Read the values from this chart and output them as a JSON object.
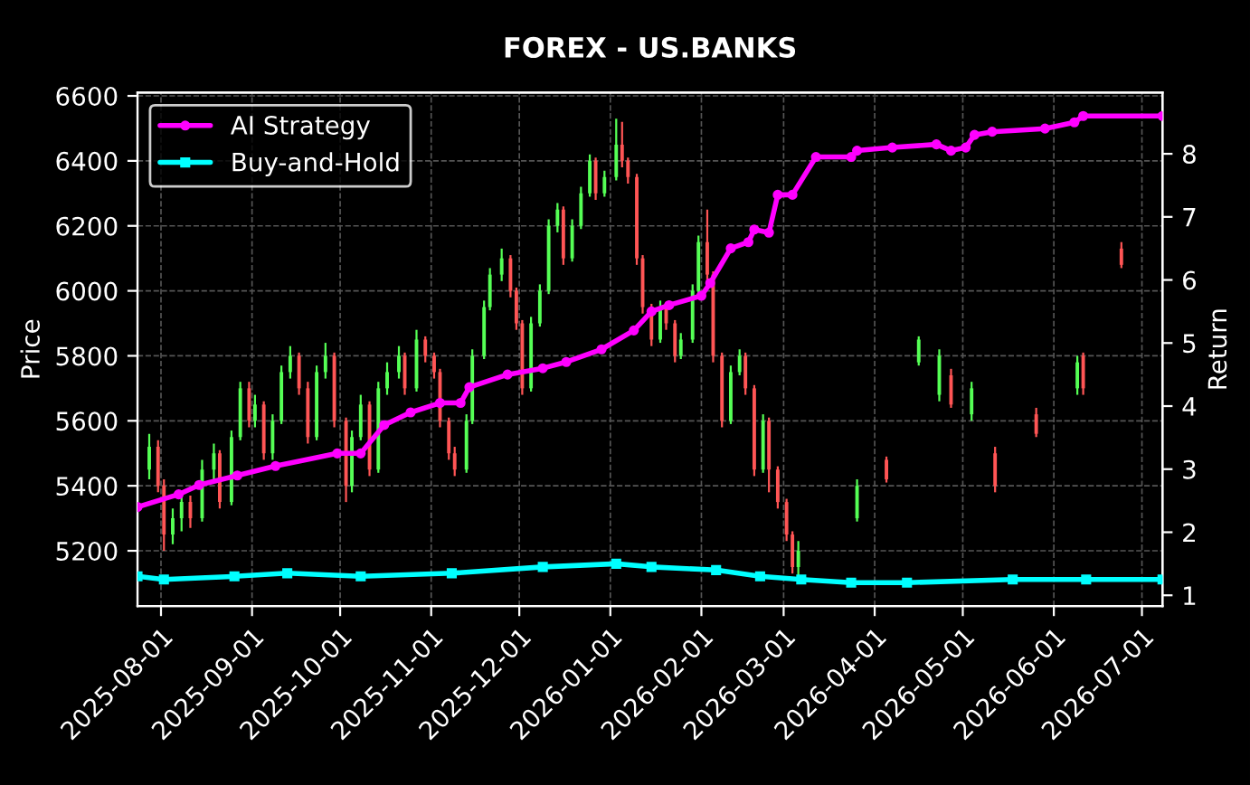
{
  "chart_data": {
    "type": "candlestick",
    "title": "FOREX - US.BANKS",
    "ylabel": "Price",
    "y2label": "Return",
    "x": [
      "2025-07-28",
      "2025-07-31",
      "2025-08-02",
      "2025-08-05",
      "2025-08-08",
      "2025-08-11",
      "2025-08-15",
      "2025-08-19",
      "2025-08-21",
      "2025-08-25",
      "2025-08-28",
      "2025-08-31",
      "2025-09-02",
      "2025-09-05",
      "2025-09-08",
      "2025-09-11",
      "2025-09-14",
      "2025-09-17",
      "2025-09-20",
      "2025-09-23",
      "2025-09-26",
      "2025-09-29",
      "2025-10-03",
      "2025-10-05",
      "2025-10-08",
      "2025-10-11",
      "2025-10-14",
      "2025-10-17",
      "2025-10-21",
      "2025-10-23",
      "2025-10-27",
      "2025-10-30",
      "2025-11-02",
      "2025-11-04",
      "2025-11-07",
      "2025-11-09",
      "2025-11-13",
      "2025-11-15",
      "2025-11-19",
      "2025-11-21",
      "2025-11-25",
      "2025-11-28",
      "2025-11-30",
      "2025-12-02",
      "2025-12-05",
      "2025-12-08",
      "2025-12-11",
      "2025-12-14",
      "2025-12-16",
      "2025-12-19",
      "2025-12-22",
      "2025-12-25",
      "2025-12-27",
      "2025-12-30",
      "2026-01-03",
      "2026-01-05",
      "2026-01-07",
      "2026-01-10",
      "2026-01-12",
      "2026-01-15",
      "2026-01-18",
      "2026-01-20",
      "2026-01-23",
      "2026-01-25",
      "2026-01-29",
      "2026-01-31",
      "2026-02-03",
      "2026-02-05",
      "2026-02-08",
      "2026-02-11",
      "2026-02-14",
      "2026-02-16",
      "2026-02-19",
      "2026-02-22",
      "2026-02-24",
      "2026-02-27",
      "2026-03-02",
      "2026-03-04",
      "2026-03-06",
      "2026-03-26",
      "2026-04-05",
      "2026-04-16",
      "2026-04-23",
      "2026-04-27",
      "2026-05-04",
      "2026-05-12",
      "2026-05-26",
      "2026-06-09",
      "2026-06-11",
      "2026-06-24"
    ],
    "ohlc": [
      [
        5450,
        5560,
        5420,
        5520
      ],
      [
        5520,
        5540,
        5380,
        5400
      ],
      [
        5400,
        5420,
        5200,
        5250
      ],
      [
        5250,
        5330,
        5220,
        5300
      ],
      [
        5300,
        5380,
        5260,
        5350
      ],
      [
        5350,
        5370,
        5270,
        5300
      ],
      [
        5300,
        5480,
        5290,
        5450
      ],
      [
        5450,
        5530,
        5420,
        5500
      ],
      [
        5500,
        5510,
        5330,
        5350
      ],
      [
        5350,
        5570,
        5340,
        5550
      ],
      [
        5550,
        5720,
        5540,
        5700
      ],
      [
        5700,
        5720,
        5580,
        5600
      ],
      [
        5600,
        5680,
        5580,
        5650
      ],
      [
        5650,
        5660,
        5480,
        5500
      ],
      [
        5500,
        5620,
        5480,
        5600
      ],
      [
        5600,
        5770,
        5590,
        5750
      ],
      [
        5750,
        5830,
        5730,
        5800
      ],
      [
        5800,
        5810,
        5680,
        5700
      ],
      [
        5700,
        5720,
        5530,
        5550
      ],
      [
        5550,
        5770,
        5540,
        5750
      ],
      [
        5750,
        5840,
        5730,
        5800
      ],
      [
        5800,
        5810,
        5580,
        5600
      ],
      [
        5600,
        5610,
        5350,
        5400
      ],
      [
        5400,
        5570,
        5380,
        5550
      ],
      [
        5550,
        5680,
        5540,
        5650
      ],
      [
        5650,
        5660,
        5430,
        5450
      ],
      [
        5450,
        5720,
        5440,
        5700
      ],
      [
        5700,
        5780,
        5680,
        5750
      ],
      [
        5750,
        5830,
        5730,
        5800
      ],
      [
        5800,
        5810,
        5680,
        5700
      ],
      [
        5700,
        5880,
        5690,
        5850
      ],
      [
        5850,
        5860,
        5780,
        5800
      ],
      [
        5800,
        5810,
        5730,
        5750
      ],
      [
        5750,
        5760,
        5580,
        5600
      ],
      [
        5600,
        5610,
        5480,
        5500
      ],
      [
        5500,
        5520,
        5430,
        5450
      ],
      [
        5450,
        5620,
        5440,
        5600
      ],
      [
        5600,
        5820,
        5590,
        5800
      ],
      [
        5800,
        5970,
        5790,
        5950
      ],
      [
        5950,
        6070,
        5940,
        6050
      ],
      [
        6050,
        6130,
        6030,
        6100
      ],
      [
        6100,
        6110,
        5980,
        6000
      ],
      [
        6000,
        6010,
        5880,
        5900
      ],
      [
        5900,
        5910,
        5680,
        5700
      ],
      [
        5700,
        5920,
        5690,
        5900
      ],
      [
        5900,
        6020,
        5890,
        6000
      ],
      [
        6000,
        6220,
        5990,
        6200
      ],
      [
        6200,
        6270,
        6180,
        6250
      ],
      [
        6250,
        6260,
        6080,
        6100
      ],
      [
        6100,
        6220,
        6090,
        6200
      ],
      [
        6200,
        6320,
        6190,
        6300
      ],
      [
        6300,
        6420,
        6290,
        6400
      ],
      [
        6400,
        6410,
        6280,
        6300
      ],
      [
        6300,
        6370,
        6290,
        6350
      ],
      [
        6350,
        6530,
        6340,
        6450
      ],
      [
        6450,
        6520,
        6380,
        6400
      ],
      [
        6400,
        6410,
        6330,
        6350
      ],
      [
        6350,
        6360,
        6080,
        6100
      ],
      [
        6100,
        6110,
        5930,
        5950
      ],
      [
        5950,
        5960,
        5830,
        5850
      ],
      [
        5850,
        5970,
        5840,
        5950
      ],
      [
        5950,
        5960,
        5880,
        5900
      ],
      [
        5900,
        5910,
        5780,
        5800
      ],
      [
        5800,
        5870,
        5790,
        5850
      ],
      [
        5850,
        6020,
        5840,
        6000
      ],
      [
        6000,
        6170,
        5990,
        6150
      ],
      [
        6150,
        6250,
        6030,
        6050
      ],
      [
        6050,
        6060,
        5780,
        5800
      ],
      [
        5800,
        5810,
        5580,
        5600
      ],
      [
        5600,
        5770,
        5590,
        5750
      ],
      [
        5750,
        5820,
        5740,
        5800
      ],
      [
        5800,
        5810,
        5680,
        5700
      ],
      [
        5700,
        5710,
        5430,
        5450
      ],
      [
        5450,
        5620,
        5440,
        5600
      ],
      [
        5600,
        5610,
        5380,
        5450
      ],
      [
        5450,
        5460,
        5330,
        5350
      ],
      [
        5350,
        5360,
        5230,
        5250
      ],
      [
        5250,
        5260,
        5130,
        5150
      ],
      [
        5150,
        5230,
        5120,
        5200
      ],
      [
        5300,
        5420,
        5290,
        5400
      ],
      [
        5480,
        5490,
        5410,
        5420
      ],
      [
        5780,
        5860,
        5770,
        5850
      ],
      [
        5680,
        5820,
        5660,
        5800
      ],
      [
        5740,
        5760,
        5640,
        5650
      ],
      [
        5620,
        5720,
        5600,
        5700
      ],
      [
        5500,
        5520,
        5380,
        5400
      ],
      [
        5620,
        5640,
        5550,
        5560
      ],
      [
        5700,
        5800,
        5680,
        5780
      ],
      [
        5800,
        5810,
        5680,
        5700
      ],
      [
        6130,
        6150,
        6070,
        6080
      ]
    ],
    "colors": [
      "#55ff55",
      "#ff5555",
      "#ff5555",
      "#55ff55",
      "#55ff55",
      "#ff5555",
      "#55ff55",
      "#55ff55",
      "#ff5555",
      "#55ff55",
      "#55ff55",
      "#ff5555",
      "#55ff55",
      "#ff5555",
      "#55ff55",
      "#55ff55",
      "#55ff55",
      "#ff5555",
      "#ff5555",
      "#55ff55",
      "#55ff55",
      "#ff5555",
      "#ff5555",
      "#55ff55",
      "#55ff55",
      "#ff5555",
      "#55ff55",
      "#55ff55",
      "#55ff55",
      "#ff5555",
      "#55ff55",
      "#ff5555",
      "#ff5555",
      "#ff5555",
      "#ff5555",
      "#ff5555",
      "#55ff55",
      "#55ff55",
      "#55ff55",
      "#55ff55",
      "#55ff55",
      "#ff5555",
      "#ff5555",
      "#ff5555",
      "#55ff55",
      "#55ff55",
      "#55ff55",
      "#55ff55",
      "#ff5555",
      "#55ff55",
      "#55ff55",
      "#55ff55",
      "#ff5555",
      "#55ff55",
      "#55ff55",
      "#ff5555",
      "#ff5555",
      "#ff5555",
      "#ff5555",
      "#ff5555",
      "#55ff55",
      "#ff5555",
      "#ff5555",
      "#55ff55",
      "#55ff55",
      "#55ff55",
      "#ff5555",
      "#ff5555",
      "#ff5555",
      "#55ff55",
      "#55ff55",
      "#ff5555",
      "#ff5555",
      "#55ff55",
      "#ff5555",
      "#ff5555",
      "#ff5555",
      "#ff5555",
      "#55ff55",
      "#55ff55",
      "#ff5555",
      "#55ff55",
      "#55ff55",
      "#ff5555",
      "#55ff55",
      "#ff5555",
      "#ff5555",
      "#55ff55",
      "#ff5555",
      "#ff5555"
    ],
    "series": [
      {
        "name": "AI Strategy",
        "type": "line",
        "axis": "y2",
        "color": "#ff00ff",
        "marker": "circle",
        "x": [
          "2025-07-24",
          "2025-08-07",
          "2025-08-14",
          "2025-08-27",
          "2025-09-09",
          "2025-09-30",
          "2025-10-08",
          "2025-10-16",
          "2025-10-25",
          "2025-11-04",
          "2025-11-11",
          "2025-11-14",
          "2025-11-27",
          "2025-12-09",
          "2025-12-17",
          "2025-12-29",
          "2026-01-09",
          "2026-01-15",
          "2026-01-21",
          "2026-02-01",
          "2026-02-04",
          "2026-02-11",
          "2026-02-17",
          "2026-02-19",
          "2026-02-24",
          "2026-02-27",
          "2026-03-04",
          "2026-03-12",
          "2026-03-24",
          "2026-03-26",
          "2026-04-07",
          "2026-04-22",
          "2026-04-27",
          "2026-05-02",
          "2026-05-05",
          "2026-05-11",
          "2026-05-29",
          "2026-06-08",
          "2026-06-11",
          "2026-07-08"
        ],
        "values": [
          2.4,
          2.6,
          2.75,
          2.9,
          3.05,
          3.25,
          3.25,
          3.7,
          3.9,
          4.05,
          4.05,
          4.3,
          4.5,
          4.6,
          4.7,
          4.9,
          5.2,
          5.5,
          5.6,
          5.75,
          5.95,
          6.5,
          6.6,
          6.8,
          6.75,
          7.35,
          7.35,
          7.95,
          7.95,
          8.05,
          8.1,
          8.15,
          8.05,
          8.1,
          8.3,
          8.35,
          8.4,
          8.5,
          8.6,
          8.6
        ]
      },
      {
        "name": "Buy-and-Hold",
        "type": "line",
        "axis": "y2",
        "color": "#00ffff",
        "marker": "square",
        "x": [
          "2025-07-24",
          "2025-08-02",
          "2025-08-26",
          "2025-09-13",
          "2025-10-08",
          "2025-11-08",
          "2025-12-09",
          "2026-01-03",
          "2026-01-15",
          "2026-02-06",
          "2026-02-21",
          "2026-03-07",
          "2026-03-24",
          "2026-04-12",
          "2026-05-18",
          "2026-06-12",
          "2026-07-08"
        ],
        "values": [
          1.3,
          1.25,
          1.3,
          1.35,
          1.3,
          1.35,
          1.45,
          1.5,
          1.45,
          1.4,
          1.3,
          1.25,
          1.2,
          1.2,
          1.25,
          1.25,
          1.25
        ]
      }
    ],
    "xlim": [
      "2025-07-24",
      "2026-07-08"
    ],
    "xticks": [
      "2025-08-01",
      "2025-09-01",
      "2025-10-01",
      "2025-11-01",
      "2025-12-01",
      "2026-01-01",
      "2026-02-01",
      "2026-03-01",
      "2026-04-01",
      "2026-05-01",
      "2026-06-01",
      "2026-07-01"
    ],
    "ylim": [
      5030,
      6610
    ],
    "yticks": [
      5200,
      5400,
      5600,
      5800,
      6000,
      6200,
      6400,
      6600
    ],
    "y2lim": [
      0.83,
      8.97
    ],
    "y2ticks": [
      1,
      2,
      3,
      4,
      5,
      6,
      7,
      8
    ],
    "grid": true,
    "legend": "top left"
  }
}
